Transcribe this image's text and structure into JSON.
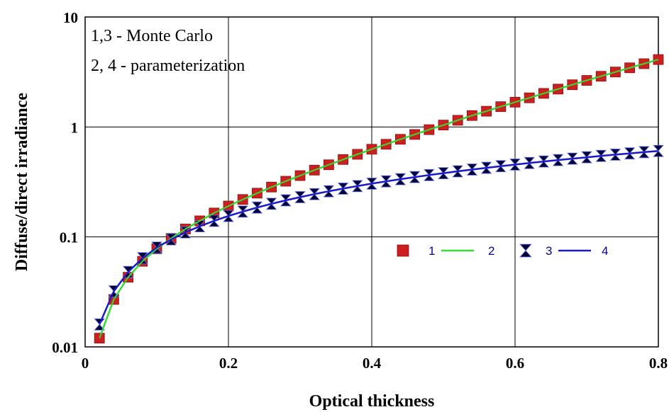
{
  "chart_data": {
    "type": "line",
    "xlabel": "Optical thickness",
    "ylabel": "Diffuse/direct irradiance",
    "xlim": [
      0,
      0.8
    ],
    "ylim": [
      0.01,
      10
    ],
    "yscale": "log",
    "x_ticks": [
      "0",
      "0.2",
      "0.4",
      "0.6",
      "0.8"
    ],
    "y_ticks": [
      "0.01",
      "0.1",
      "1",
      "10"
    ],
    "grid": true,
    "legend_position": "center-right",
    "annotations": [
      "1,3 - Monte Carlo",
      "2, 4 - parameterization"
    ],
    "x": [
      0.02,
      0.04,
      0.06,
      0.08,
      0.1,
      0.12,
      0.14,
      0.16,
      0.18,
      0.2,
      0.22,
      0.24,
      0.26,
      0.28,
      0.3,
      0.32,
      0.34,
      0.36,
      0.38,
      0.4,
      0.42,
      0.44,
      0.46,
      0.48,
      0.5,
      0.52,
      0.54,
      0.56,
      0.58,
      0.6,
      0.62,
      0.64,
      0.66,
      0.68,
      0.7,
      0.72,
      0.74,
      0.76,
      0.78,
      0.8
    ],
    "series": [
      {
        "name": "1",
        "style": "markers",
        "marker": "square",
        "color": "#cc2020",
        "values": [
          0.012,
          0.027,
          0.043,
          0.06,
          0.078,
          0.097,
          0.118,
          0.14,
          0.165,
          0.191,
          0.219,
          0.25,
          0.284,
          0.321,
          0.361,
          0.405,
          0.453,
          0.506,
          0.564,
          0.627,
          0.696,
          0.772,
          0.855,
          0.945,
          1.04,
          1.15,
          1.27,
          1.39,
          1.53,
          1.68,
          1.84,
          2.02,
          2.21,
          2.42,
          2.65,
          2.89,
          3.16,
          3.45,
          3.76,
          4.1
        ]
      },
      {
        "name": "2",
        "style": "line",
        "color": "#33dd33",
        "values": [
          0.012,
          0.027,
          0.043,
          0.06,
          0.078,
          0.097,
          0.118,
          0.14,
          0.165,
          0.191,
          0.219,
          0.25,
          0.284,
          0.321,
          0.361,
          0.405,
          0.453,
          0.506,
          0.564,
          0.627,
          0.696,
          0.772,
          0.855,
          0.945,
          1.04,
          1.15,
          1.27,
          1.39,
          1.53,
          1.68,
          1.84,
          2.02,
          2.21,
          2.42,
          2.65,
          2.89,
          3.16,
          3.45,
          3.76,
          4.1
        ]
      },
      {
        "name": "3",
        "style": "markers",
        "marker": "hourglass",
        "color": "#000033",
        "values": [
          0.016,
          0.032,
          0.048,
          0.064,
          0.08,
          0.095,
          0.11,
          0.125,
          0.14,
          0.155,
          0.17,
          0.185,
          0.2,
          0.215,
          0.23,
          0.245,
          0.26,
          0.275,
          0.29,
          0.305,
          0.32,
          0.335,
          0.35,
          0.365,
          0.38,
          0.395,
          0.41,
          0.425,
          0.44,
          0.455,
          0.47,
          0.485,
          0.5,
          0.515,
          0.53,
          0.545,
          0.56,
          0.575,
          0.59,
          0.605
        ]
      },
      {
        "name": "4",
        "style": "line",
        "color": "#1a1acc",
        "values": [
          0.016,
          0.032,
          0.048,
          0.064,
          0.08,
          0.095,
          0.11,
          0.125,
          0.14,
          0.155,
          0.17,
          0.185,
          0.2,
          0.215,
          0.23,
          0.245,
          0.26,
          0.275,
          0.29,
          0.305,
          0.32,
          0.335,
          0.35,
          0.365,
          0.38,
          0.395,
          0.41,
          0.425,
          0.44,
          0.455,
          0.47,
          0.485,
          0.5,
          0.515,
          0.53,
          0.545,
          0.56,
          0.575,
          0.59,
          0.605
        ]
      }
    ]
  }
}
